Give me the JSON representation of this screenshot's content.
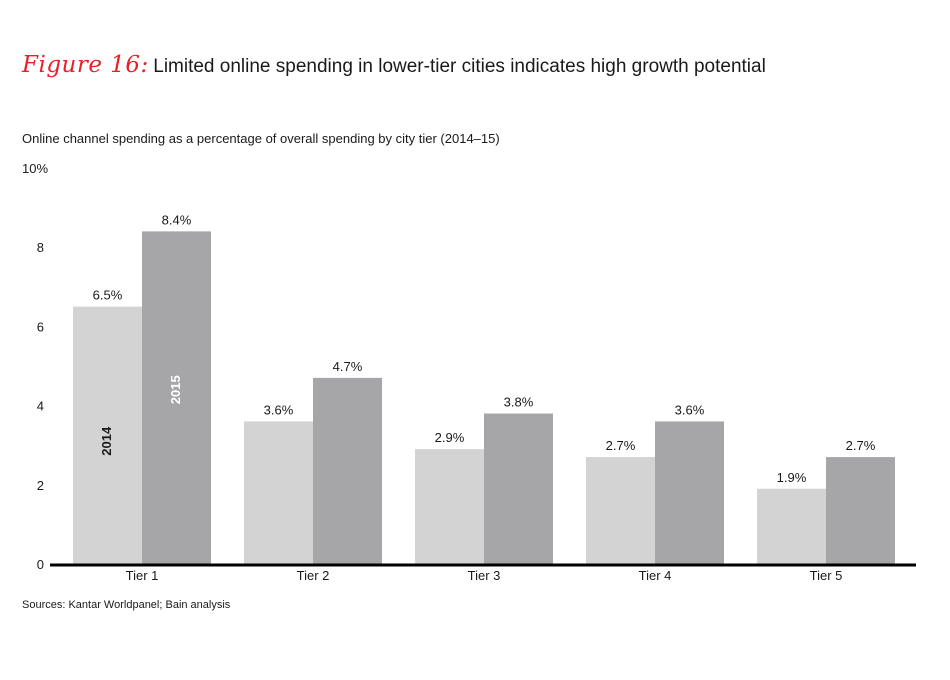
{
  "figure": {
    "label": "Figure 16:",
    "title": "Limited online spending in lower-tier cities indicates high growth potential"
  },
  "subtitle": "Online channel spending as a percentage of overall spending by city tier (2014–15)",
  "source": "Sources: Kantar Worldpanel; Bain analysis",
  "chart_data": {
    "type": "bar",
    "title": "Online channel spending as a percentage of overall spending by city tier (2014–15)",
    "xlabel": "",
    "ylabel": "",
    "categories": [
      "Tier 1",
      "Tier 2",
      "Tier 3",
      "Tier 4",
      "Tier 5"
    ],
    "series": [
      {
        "name": "2014",
        "values": [
          6.5,
          3.6,
          2.9,
          2.7,
          1.9
        ],
        "labels": [
          "6.5%",
          "3.6%",
          "2.9%",
          "2.7%",
          "1.9%"
        ],
        "color": "#d3d3d3"
      },
      {
        "name": "2015",
        "values": [
          8.4,
          4.7,
          3.8,
          3.6,
          2.7
        ],
        "labels": [
          "8.4%",
          "4.7%",
          "3.8%",
          "3.6%",
          "2.7%"
        ],
        "color": "#a6a6a8"
      }
    ],
    "ylim": [
      0,
      10
    ],
    "yticks": [
      {
        "value": 0,
        "label": "0"
      },
      {
        "value": 2,
        "label": "2"
      },
      {
        "value": 4,
        "label": "4"
      },
      {
        "value": 6,
        "label": "6"
      },
      {
        "value": 8,
        "label": "8"
      },
      {
        "value": 10,
        "label": "10%"
      }
    ],
    "grid": false,
    "legend": "inside-first-bars",
    "colors": {
      "axis": "#000000",
      "series_label_2014": "#1a1a1a",
      "series_label_2015": "#ffffff"
    }
  }
}
